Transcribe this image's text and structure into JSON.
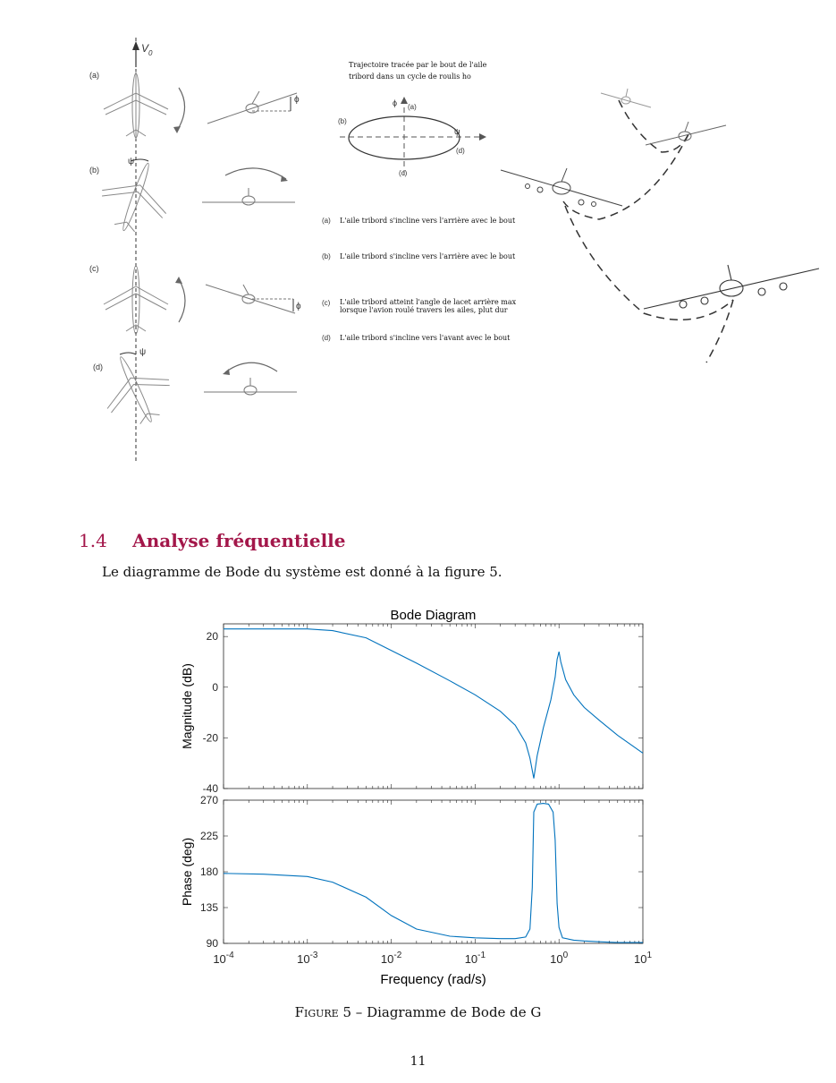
{
  "figure_top": {
    "left_labels": [
      "(a)",
      "(b)",
      "(c)",
      "(d)"
    ],
    "v0_label": "V",
    "v0_sub": "0",
    "psi_symbol": "ψ",
    "phi_symbol": "ϕ",
    "orbit_title_lines": [
      "Trajectoire tracée par le bout de l'aile",
      "tribord dans un cycle de roulis ho"
    ],
    "orbit_labels": {
      "a": "(a)",
      "b": "(b)",
      "c": "(c)",
      "d": "(d)",
      "phi": "ϕ",
      "psi": "ψ"
    },
    "notes": [
      {
        "tag": "(a)",
        "lines": [
          "L'aile tribord s'incline vers l'arrière avec le bout"
        ]
      },
      {
        "tag": "(b)",
        "lines": [
          "L'aile tribord s'incline vers l'arrière avec le bout"
        ]
      },
      {
        "tag": "(c)",
        "lines": [
          "L'aile tribord atteint l'angle de lacet arrière max",
          "lorsque l'avion roulé travers les ailes, plut dur"
        ]
      },
      {
        "tag": "(d)",
        "lines": [
          "L'aile tribord s'incline vers l'avant avec le bout"
        ]
      }
    ]
  },
  "section": {
    "number": "1.4",
    "title": "Analyse fréquentielle",
    "body": "Le diagramme de Bode du système est donné à la figure 5."
  },
  "caption": {
    "prefix": "Figure 5",
    "text": "– Diagramme de Bode de G"
  },
  "page_number": "11",
  "chart_data": {
    "type": "line",
    "title": "Bode Diagram",
    "xlabel": "Frequency  (rad/s)",
    "xscale": "log",
    "xlim": [
      0.0001,
      10
    ],
    "x_tick_labels": [
      {
        "base": "10",
        "exp": "-4"
      },
      {
        "base": "10",
        "exp": "-3"
      },
      {
        "base": "10",
        "exp": "-2"
      },
      {
        "base": "10",
        "exp": "-1"
      },
      {
        "base": "10",
        "exp": "0"
      },
      {
        "base": "10",
        "exp": "1"
      }
    ],
    "color": "#0072bd",
    "magnitude": {
      "ylabel": "Magnitude (dB)",
      "ylim": [
        -40,
        25
      ],
      "yticks": [
        20,
        0,
        -20,
        -40
      ],
      "x": [
        0.0001,
        0.0003,
        0.001,
        0.002,
        0.005,
        0.01,
        0.02,
        0.05,
        0.1,
        0.2,
        0.3,
        0.4,
        0.45,
        0.5,
        0.55,
        0.65,
        0.8,
        0.9,
        0.95,
        1.0,
        1.05,
        1.2,
        1.5,
        2,
        3,
        5,
        10
      ],
      "y": [
        23,
        23,
        23,
        22.3,
        19.5,
        14.5,
        9.5,
        2.5,
        -3,
        -9.5,
        -15,
        -22,
        -28,
        -36,
        -27,
        -16,
        -5,
        4,
        11,
        14,
        10,
        3,
        -3,
        -8,
        -13,
        -19,
        -26
      ]
    },
    "phase": {
      "ylabel": "Phase (deg)",
      "ylim": [
        90,
        270
      ],
      "yticks": [
        270,
        225,
        180,
        135,
        90
      ],
      "x": [
        0.0001,
        0.0003,
        0.001,
        0.002,
        0.005,
        0.01,
        0.02,
        0.05,
        0.1,
        0.2,
        0.3,
        0.4,
        0.45,
        0.48,
        0.5,
        0.55,
        0.65,
        0.75,
        0.85,
        0.9,
        0.95,
        1.0,
        1.1,
        1.5,
        2,
        3,
        5,
        10
      ],
      "y": [
        178,
        177,
        174,
        167,
        148,
        125,
        108,
        99,
        97,
        96,
        96,
        98,
        108,
        160,
        255,
        265,
        266,
        265,
        255,
        220,
        140,
        110,
        97,
        94,
        93,
        92,
        91,
        91
      ]
    }
  }
}
